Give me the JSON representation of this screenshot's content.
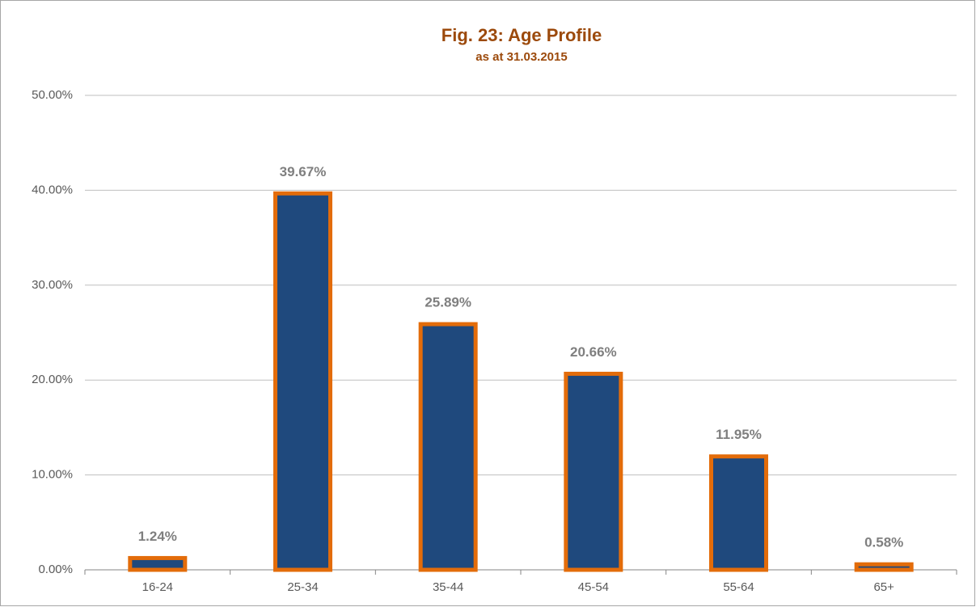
{
  "chart_data": {
    "type": "bar",
    "title": "Fig. 23: Age Profile",
    "subtitle": "as at 31.03.2015",
    "categories": [
      "16-24",
      "25-34",
      "35-44",
      "45-54",
      "55-64",
      "65+"
    ],
    "values": [
      1.24,
      39.67,
      25.89,
      20.66,
      11.95,
      0.58
    ],
    "value_labels": [
      "1.24%",
      "39.67%",
      "25.89%",
      "20.66%",
      "11.95%",
      "0.58%"
    ],
    "color": "#1f497d",
    "edge_color": "#e36c0a",
    "ylim": [
      0,
      50
    ],
    "yticks": [
      {
        "value": 0,
        "label": "0.00%"
      },
      {
        "value": 10,
        "label": "10.00%"
      },
      {
        "value": 20,
        "label": "20.00%"
      },
      {
        "value": 30,
        "label": "30.00%"
      },
      {
        "value": 40,
        "label": "40.00%"
      },
      {
        "value": 50,
        "label": "50.00%"
      }
    ],
    "grid": true
  }
}
